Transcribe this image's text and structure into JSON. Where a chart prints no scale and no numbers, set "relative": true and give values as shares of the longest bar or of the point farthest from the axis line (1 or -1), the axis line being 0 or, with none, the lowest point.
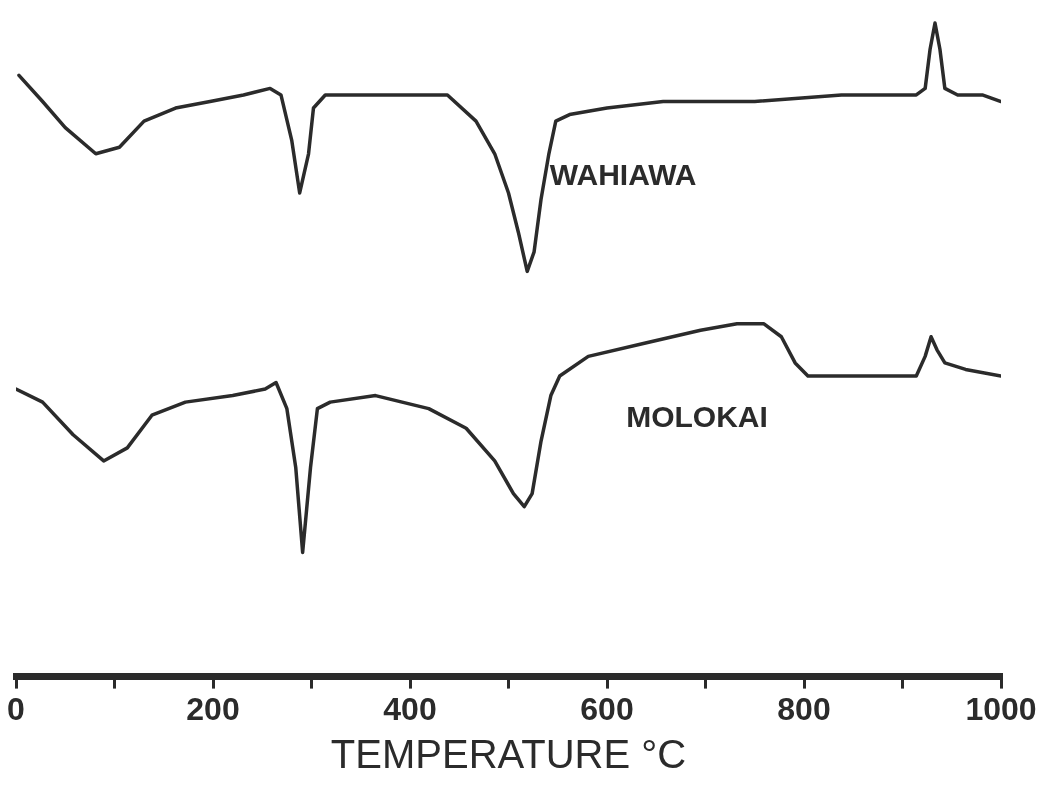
{
  "chart_data": {
    "type": "line",
    "relative": true,
    "xlabel": "TEMPERATURE °C",
    "xlim": [
      0,
      1000
    ],
    "xticks": [
      0,
      {
        "value": 100,
        "label": null
      },
      200,
      {
        "value": 300,
        "label": null
      },
      400,
      {
        "value": 500,
        "label": null
      },
      600,
      {
        "value": 700,
        "label": null
      },
      800,
      {
        "value": 900,
        "label": null
      },
      1000
    ],
    "grid": false,
    "legend": false,
    "marker": "none",
    "line_style": "solid",
    "series": [
      {
        "name": "WAHIAWA",
        "color": "#2b2b2b",
        "x": [
          3,
          27,
          50,
          81,
          105,
          130,
          162,
          197,
          231,
          258,
          269,
          280,
          288,
          297,
          302,
          314,
          354,
          400,
          438,
          467,
          486,
          500,
          510,
          519,
          526,
          533,
          541,
          548,
          562,
          600,
          657,
          750,
          838,
          914,
          923,
          928,
          933,
          938,
          943,
          956,
          981,
          1000
        ],
        "values": [
          0.92,
          0.88,
          0.84,
          0.8,
          0.81,
          0.85,
          0.87,
          0.88,
          0.89,
          0.9,
          0.89,
          0.82,
          0.74,
          0.8,
          0.87,
          0.89,
          0.89,
          0.89,
          0.89,
          0.85,
          0.8,
          0.74,
          0.68,
          0.62,
          0.65,
          0.73,
          0.8,
          0.85,
          0.86,
          0.87,
          0.88,
          0.88,
          0.89,
          0.89,
          0.9,
          0.96,
          1,
          0.96,
          0.9,
          0.89,
          0.89,
          0.88
        ]
      },
      {
        "name": "MOLOKAI",
        "color": "#2b2b2b",
        "x": [
          0,
          27,
          58,
          89,
          113,
          138,
          172,
          220,
          253,
          264,
          275,
          284,
          291,
          299,
          306,
          319,
          365,
          419,
          457,
          486,
          505,
          516,
          524,
          533,
          543,
          552,
          581,
          638,
          695,
          732,
          759,
          777,
          791,
          804,
          830,
          881,
          914,
          923,
          929,
          935,
          943,
          964,
          1000
        ],
        "values": [
          0.44,
          0.42,
          0.37,
          0.33,
          0.35,
          0.4,
          0.42,
          0.43,
          0.44,
          0.45,
          0.41,
          0.32,
          0.19,
          0.32,
          0.41,
          0.42,
          0.43,
          0.41,
          0.38,
          0.33,
          0.28,
          0.26,
          0.28,
          0.36,
          0.43,
          0.46,
          0.49,
          0.51,
          0.53,
          0.54,
          0.54,
          0.52,
          0.48,
          0.46,
          0.46,
          0.46,
          0.46,
          0.49,
          0.52,
          0.5,
          0.48,
          0.47,
          0.46
        ]
      }
    ]
  }
}
